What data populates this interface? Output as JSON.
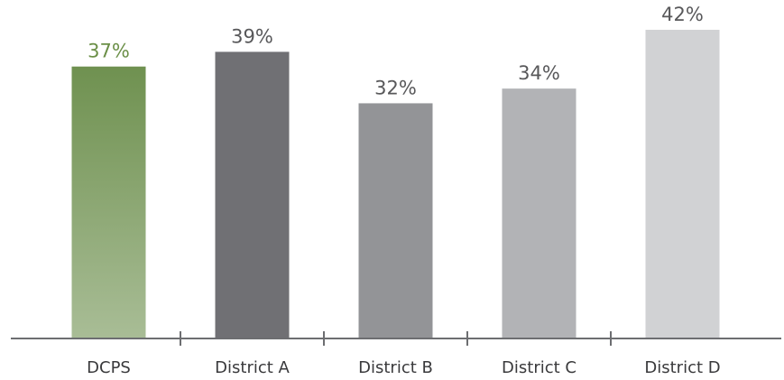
{
  "chart_data": {
    "type": "bar",
    "categories": [
      "DCPS",
      "District A",
      "District B",
      "District C",
      "District D"
    ],
    "values": [
      37,
      39,
      32,
      34,
      42
    ],
    "value_labels": [
      "37%",
      "39%",
      "32%",
      "34%",
      "42%"
    ],
    "colors": [
      "#6f9150",
      "#707074",
      "#939497",
      "#b2b3b6",
      "#d1d2d4"
    ],
    "label_colors": [
      "#6b8f47",
      "#58585a",
      "#58585a",
      "#58585a",
      "#58585a"
    ]
  }
}
